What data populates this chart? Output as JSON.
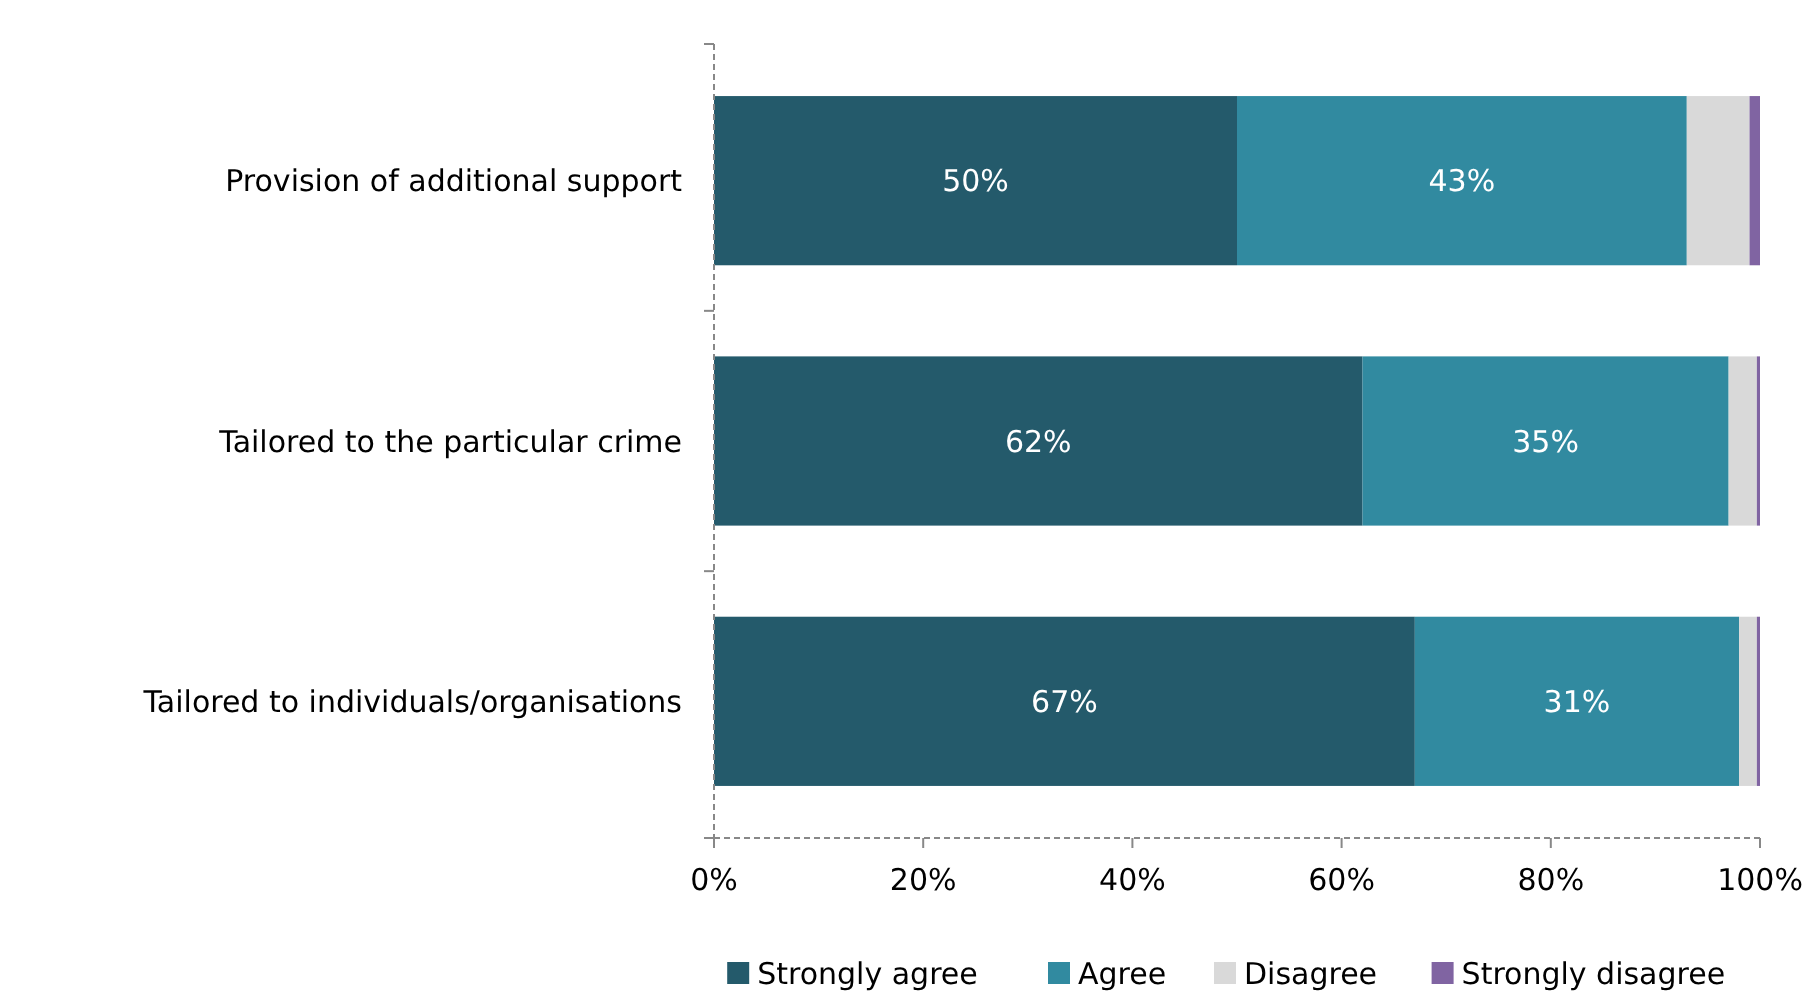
{
  "chart_data": {
    "type": "bar",
    "orientation": "horizontal",
    "stacked": true,
    "categories": [
      "Provision of additional support",
      "Tailored to the particular crime",
      "Tailored to individuals/organisations"
    ],
    "series": [
      {
        "name": "Strongly agree",
        "color": "#245a6b",
        "values": [
          50,
          62,
          67
        ],
        "value_labels": [
          "50%",
          "62%",
          "67%"
        ]
      },
      {
        "name": "Agree",
        "color": "#318aa0",
        "values": [
          43,
          35,
          31
        ],
        "value_labels": [
          "43%",
          "35%",
          "31%"
        ]
      },
      {
        "name": "Disagree",
        "color": "#d9d9d9",
        "values": [
          6,
          2.7,
          1.7
        ]
      },
      {
        "name": "Strongly disagree",
        "color": "#8064a2",
        "values": [
          1,
          0.3,
          0.3
        ]
      }
    ],
    "xlim": [
      0,
      100
    ],
    "xticks": [
      {
        "value": 0,
        "label": "0%"
      },
      {
        "value": 20,
        "label": "20%"
      },
      {
        "value": 40,
        "label": "40%"
      },
      {
        "value": 60,
        "label": "60%"
      },
      {
        "value": 80,
        "label": "80%"
      },
      {
        "value": 100,
        "label": "100%"
      }
    ],
    "legend": "bottom",
    "grid": false
  }
}
